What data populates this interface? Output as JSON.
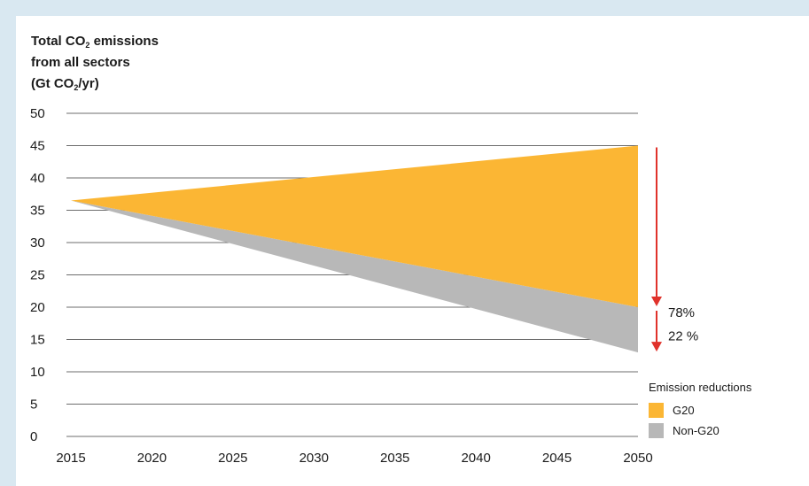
{
  "chart_data": {
    "type": "area",
    "title_lines": [
      {
        "pre": "Total CO",
        "sub": "2",
        "post": " emissions"
      },
      {
        "pre": "from all sectors",
        "sub": "",
        "post": ""
      },
      {
        "pre": "(Gt CO",
        "sub": "2",
        "post": "/yr)"
      }
    ],
    "xlabel": "",
    "ylabel": "",
    "x_ticks": [
      2015,
      2020,
      2025,
      2030,
      2035,
      2040,
      2045,
      2050
    ],
    "y_ticks": [
      0,
      5,
      10,
      15,
      20,
      25,
      30,
      35,
      40,
      45,
      50
    ],
    "xlim": [
      2015,
      2050
    ],
    "ylim": [
      0,
      50
    ],
    "grid": "horizontal",
    "series": [
      {
        "name": "G20",
        "color": "#fbb634",
        "x": [
          2015,
          2050
        ],
        "upper": [
          36.5,
          45
        ],
        "lower": [
          36.5,
          20
        ]
      },
      {
        "name": "Non-G20",
        "color": "#b8b8b8",
        "x": [
          2015,
          2050
        ],
        "upper": [
          36.5,
          20
        ],
        "lower": [
          36.5,
          13
        ]
      }
    ],
    "annotations": [
      {
        "text": "78%",
        "y_from": 45,
        "y_to": 20
      },
      {
        "text": "22 %",
        "y_from": 20,
        "y_to": 13
      }
    ],
    "arrow_color": "#e0322b",
    "legend": {
      "title": "Emission reductions",
      "position": "bottom-right"
    }
  }
}
